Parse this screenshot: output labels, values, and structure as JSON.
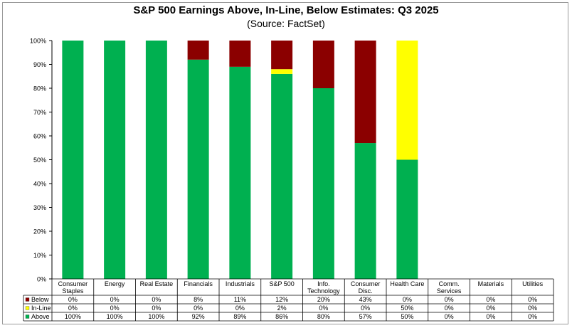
{
  "chart_data": {
    "type": "bar",
    "stacked": true,
    "title": "S&P 500 Earnings Above, In-Line, Below Estimates: Q3 2025",
    "subtitle": "(Source: FactSet)",
    "ylim": [
      0,
      100
    ],
    "ytick_labels": [
      "0%",
      "10%",
      "20%",
      "30%",
      "40%",
      "50%",
      "60%",
      "70%",
      "80%",
      "90%",
      "100%"
    ],
    "categories": [
      [
        "Consumer",
        "Staples"
      ],
      [
        "Energy"
      ],
      [
        "Real Estate"
      ],
      [
        "Financials"
      ],
      [
        "Industrials"
      ],
      [
        "S&P 500"
      ],
      [
        "Info.",
        "Technology"
      ],
      [
        "Consumer",
        "Disc."
      ],
      [
        "Health Care"
      ],
      [
        "Comm.",
        "Services"
      ],
      [
        "Materials"
      ],
      [
        "Utilities"
      ]
    ],
    "series": [
      {
        "name": "Above",
        "color": "#00b050",
        "values": [
          100,
          100,
          100,
          92,
          89,
          86,
          80,
          57,
          50,
          0,
          0,
          0
        ]
      },
      {
        "name": "In-Line",
        "color": "#ffff00",
        "values": [
          0,
          0,
          0,
          0,
          0,
          2,
          0,
          0,
          50,
          0,
          0,
          0
        ]
      },
      {
        "name": "Below",
        "color": "#8b0000",
        "values": [
          0,
          0,
          0,
          8,
          11,
          12,
          20,
          43,
          0,
          0,
          0,
          0
        ]
      }
    ],
    "table_rows": [
      "Below",
      "In-Line",
      "Above"
    ],
    "grid": false,
    "legend": "data-table"
  }
}
